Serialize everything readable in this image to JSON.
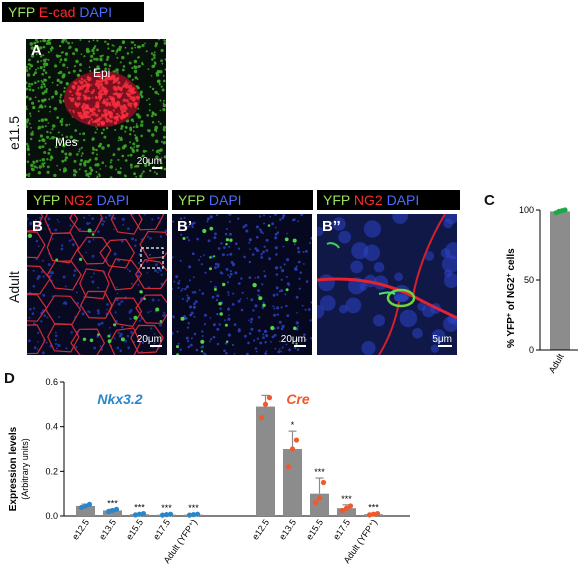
{
  "panel_A": {
    "letter": "A",
    "header": {
      "yfp": "YFP",
      "ecad": "E-cad",
      "dapi": "DAPI"
    },
    "stage_label": "e11.5",
    "epi_label": "Epi",
    "mes_label": "Mes",
    "scale_label": "20μm"
  },
  "panel_B": {
    "letter": "B",
    "header": {
      "yfp": "YFP",
      "ng2": "NG2",
      "dapi": "DAPI"
    },
    "stage_label": "Adult",
    "scale_label": "20μm"
  },
  "panel_B1": {
    "letter": "B’",
    "header": {
      "yfp": "YFP",
      "dapi": "DAPI"
    },
    "scale_label": "20μm"
  },
  "panel_B2": {
    "letter": "B’’",
    "header": {
      "yfp": "YFP",
      "ng2": "NG2",
      "dapi": "DAPI"
    },
    "scale_label": "5μm"
  },
  "panel_C": {
    "letter": "C",
    "chart_data": {
      "type": "bar",
      "categories": [
        "Adult"
      ],
      "values": [
        99
      ],
      "points": [
        98,
        99,
        99.5,
        100
      ],
      "ylabel_parts": [
        "% YFP",
        "+",
        " of NG2",
        "+",
        " cells"
      ],
      "ylim": [
        0,
        100
      ],
      "yticks": [
        "0",
        "50",
        "100"
      ],
      "bar_color": "#8c8c8c",
      "point_color": "#1aa84a"
    }
  },
  "panel_D": {
    "letter": "D",
    "chart_data": {
      "type": "bar",
      "ylabel": "Expression levels",
      "ylabel2": "(Arbitrary units)",
      "ylim": [
        0,
        0.6
      ],
      "yticks": [
        "0.0",
        "0.2",
        "0.4",
        "0.6"
      ],
      "series": [
        {
          "name": "Nkx3.2",
          "color": "#2a86c9",
          "categories": [
            "e12.5",
            "e13.5",
            "e15.5",
            "e17.5",
            "Adult (YFP⁺)"
          ],
          "values": [
            0.045,
            0.025,
            0.008,
            0.006,
            0.006
          ],
          "errors": [
            0.008,
            0.005,
            0.003,
            0.002,
            0.002
          ],
          "significance": [
            "",
            "***",
            "***",
            "***",
            "***"
          ],
          "points": [
            [
              0.038,
              0.045,
              0.052
            ],
            [
              0.02,
              0.025,
              0.03
            ],
            [
              0.005,
              0.008,
              0.011
            ],
            [
              0.004,
              0.006,
              0.008
            ],
            [
              0.004,
              0.006,
              0.008
            ]
          ]
        },
        {
          "name": "Cre",
          "color": "#f0592b",
          "categories": [
            "e12.5",
            "e13.5",
            "e15.5",
            "e17.5",
            "Adult (YFP⁺)"
          ],
          "values": [
            0.49,
            0.3,
            0.1,
            0.035,
            0.008
          ],
          "errors": [
            0.05,
            0.08,
            0.07,
            0.015,
            0.004
          ],
          "significance": [
            "",
            "*",
            "***",
            "***",
            "***"
          ],
          "points": [
            [
              0.44,
              0.5,
              0.53
            ],
            [
              0.22,
              0.3,
              0.34
            ],
            [
              0.06,
              0.08,
              0.15
            ],
            [
              0.025,
              0.035,
              0.045
            ],
            [
              0.005,
              0.008,
              0.011
            ]
          ]
        }
      ],
      "bar_color": "#8c8c8c"
    }
  }
}
